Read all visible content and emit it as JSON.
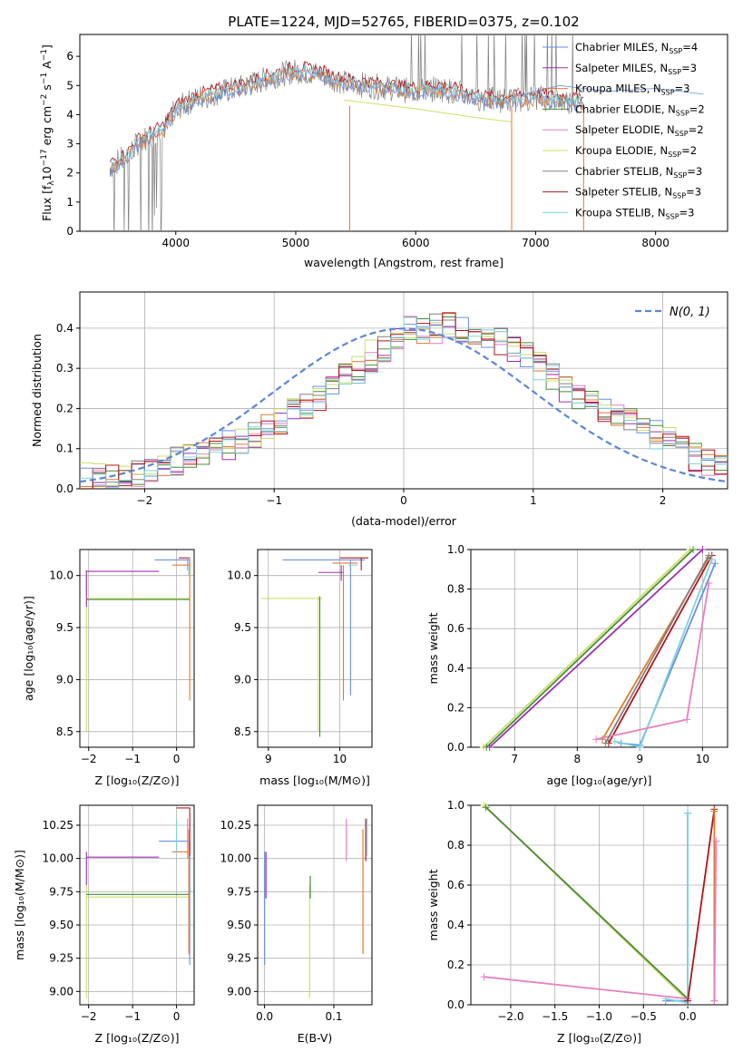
{
  "figure": {
    "title": "PLATE=1224, MJD=52765, FIBERID=0375, z=0.102"
  },
  "colors": {
    "Chabrier MILES": "#6a8fe0",
    "Salpeter MILES": "#9b30b0",
    "Kroupa MILES": "#e07a2e",
    "Chabrier ELODIE": "#4a8a3a",
    "Salpeter ELODIE": "#e77fbf",
    "Kroupa ELODIE": "#c8e06a",
    "Chabrier STELIB": "#808080",
    "Salpeter STELIB": "#b0141e",
    "Kroupa STELIB": "#7fd3dd"
  },
  "chart_data": [
    {
      "id": "spectrum",
      "type": "line",
      "xlabel": "wavelength [Angstrom, rest frame]",
      "ylabel": "Flux [f_λ10^-17 erg cm^-2 s^-1 A^-1]",
      "xlim": [
        3200,
        8600
      ],
      "ylim": [
        0,
        6.75
      ],
      "xticks": [
        4000,
        5000,
        6000,
        7000,
        8000
      ],
      "yticks": [
        0,
        1,
        2,
        3,
        4,
        5,
        6
      ],
      "legend_position": "top-right",
      "legend": [
        {
          "base": "Chabrier MILES, N",
          "sub": "SSP",
          "tail": "=4"
        },
        {
          "base": "Salpeter MILES, N",
          "sub": "SSP",
          "tail": "=3"
        },
        {
          "base": "Kroupa MILES, N",
          "sub": "SSP",
          "tail": "=3"
        },
        {
          "base": "Chabrier ELODIE, N",
          "sub": "SSP",
          "tail": "=2"
        },
        {
          "base": "Salpeter ELODIE, N",
          "sub": "SSP",
          "tail": "=2"
        },
        {
          "base": "Kroupa ELODIE, N",
          "sub": "SSP",
          "tail": "=2"
        },
        {
          "base": "Chabrier STELIB, N",
          "sub": "SSP",
          "tail": "=3"
        },
        {
          "base": "Salpeter STELIB, N",
          "sub": "SSP",
          "tail": "=3"
        },
        {
          "base": "Kroupa STELIB, N",
          "sub": "SSP",
          "tail": "=3"
        }
      ],
      "model_curve_points": [
        [
          3450,
          2.2
        ],
        [
          3600,
          2.6
        ],
        [
          3700,
          3.1
        ],
        [
          3800,
          3.3
        ],
        [
          3900,
          3.5
        ],
        [
          4000,
          4.2
        ],
        [
          4200,
          4.6
        ],
        [
          4400,
          4.8
        ],
        [
          4600,
          5.0
        ],
        [
          4800,
          5.3
        ],
        [
          5000,
          5.5
        ],
        [
          5200,
          5.4
        ],
        [
          5400,
          5.1
        ],
        [
          5600,
          5.0
        ],
        [
          5800,
          4.9
        ],
        [
          6000,
          4.8
        ],
        [
          6200,
          4.9
        ],
        [
          6400,
          4.7
        ],
        [
          6600,
          4.5
        ],
        [
          6800,
          4.5
        ],
        [
          7000,
          4.6
        ],
        [
          7200,
          4.5
        ],
        [
          7400,
          4.4
        ]
      ],
      "elodie_curve_points": [
        [
          5400,
          4.5
        ],
        [
          6000,
          4.2
        ],
        [
          6500,
          3.9
        ],
        [
          6800,
          3.75
        ]
      ],
      "miles_extension_points": [
        [
          6800,
          4.6
        ],
        [
          7200,
          5.0
        ],
        [
          7600,
          4.8
        ],
        [
          8000,
          4.9
        ],
        [
          8400,
          4.7
        ]
      ]
    },
    {
      "id": "residuals",
      "type": "histogram",
      "xlabel": "(data-model)/error",
      "ylabel": "Normed distribution",
      "xlim": [
        -2.5,
        2.5
      ],
      "ylim": [
        0,
        0.49
      ],
      "xticks": [
        -2,
        -1,
        0,
        1,
        2
      ],
      "yticks": [
        0.0,
        0.1,
        0.2,
        0.3,
        0.4
      ],
      "legend": "N(0,1)",
      "legend_position": "top-right",
      "bins": [
        -2.5,
        -2.4,
        -2.3,
        -2.2,
        -2.1,
        -2.0,
        -1.9,
        -1.8,
        -1.7,
        -1.6,
        -1.5,
        -1.4,
        -1.3,
        -1.2,
        -1.1,
        -1.0,
        -0.9,
        -0.8,
        -0.7,
        -0.6,
        -0.5,
        -0.4,
        -0.3,
        -0.2,
        -0.1,
        0.0,
        0.1,
        0.2,
        0.3,
        0.4,
        0.5,
        0.6,
        0.7,
        0.8,
        0.9,
        1.0,
        1.1,
        1.2,
        1.3,
        1.4,
        1.5,
        1.6,
        1.7,
        1.8,
        1.9,
        2.0,
        2.1,
        2.2,
        2.3,
        2.4,
        2.5
      ],
      "base_values": [
        0.02,
        0.02,
        0.03,
        0.03,
        0.04,
        0.05,
        0.06,
        0.07,
        0.08,
        0.09,
        0.1,
        0.11,
        0.12,
        0.13,
        0.15,
        0.17,
        0.19,
        0.21,
        0.23,
        0.26,
        0.28,
        0.3,
        0.33,
        0.35,
        0.37,
        0.4,
        0.39,
        0.4,
        0.41,
        0.4,
        0.39,
        0.38,
        0.37,
        0.35,
        0.33,
        0.3,
        0.28,
        0.25,
        0.23,
        0.21,
        0.2,
        0.18,
        0.17,
        0.15,
        0.14,
        0.12,
        0.1,
        0.08,
        0.07,
        0.06
      ]
    },
    {
      "id": "age-vs-Z",
      "type": "scatter",
      "xlabel": "Z [log10(Z/Z⊙)]",
      "ylabel": "age [log10(age/yr)]",
      "xlim": [
        -2.2,
        0.4
      ],
      "ylim": [
        8.35,
        10.25
      ],
      "xticks": [
        -2,
        -1,
        0
      ],
      "yticks": [
        8.5,
        9.0,
        9.5,
        10.0
      ]
    },
    {
      "id": "age-vs-mass",
      "type": "scatter",
      "xlabel": "mass [log10(M/M⊙)]",
      "xlim": [
        8.85,
        10.45
      ],
      "ylim": [
        8.35,
        10.25
      ],
      "xticks": [
        9,
        10
      ],
      "yticks": [
        8.5,
        9.0,
        9.5,
        10.0
      ]
    },
    {
      "id": "massweight-vs-age",
      "type": "line",
      "xlabel": "age [log10(age/yr)]",
      "ylabel": "mass weight",
      "xlim": [
        6.3,
        10.4
      ],
      "ylim": [
        0,
        1.0
      ],
      "xticks": [
        7,
        8,
        9,
        10
      ],
      "yticks": [
        0.0,
        0.2,
        0.4,
        0.6,
        0.8,
        1.0
      ],
      "series": [
        {
          "name": "Kroupa ELODIE",
          "points": [
            [
              6.5,
              0.0
            ],
            [
              9.8,
              1.0
            ]
          ]
        },
        {
          "name": "Chabrier ELODIE",
          "points": [
            [
              6.55,
              0.0
            ],
            [
              9.85,
              1.0
            ]
          ]
        },
        {
          "name": "Salpeter MILES",
          "points": [
            [
              6.6,
              0.0
            ],
            [
              10.0,
              1.0
            ]
          ]
        },
        {
          "name": "Salpeter STELIB",
          "points": [
            [
              8.5,
              0.02
            ],
            [
              10.15,
              0.97
            ]
          ]
        },
        {
          "name": "Kroupa MILES",
          "points": [
            [
              8.4,
              0.04
            ],
            [
              10.1,
              0.96
            ]
          ]
        },
        {
          "name": "Chabrier MILES",
          "points": [
            [
              8.7,
              0.02
            ],
            [
              9.0,
              0.01
            ],
            [
              10.2,
              0.93
            ]
          ]
        },
        {
          "name": "Kroupa STELIB",
          "points": [
            [
              8.6,
              0.03
            ],
            [
              9.0,
              0.0
            ],
            [
              10.15,
              0.95
            ]
          ]
        },
        {
          "name": "Salpeter ELODIE",
          "points": [
            [
              8.3,
              0.04
            ],
            [
              9.75,
              0.14
            ],
            [
              10.1,
              0.83
            ]
          ]
        },
        {
          "name": "Chabrier STELIB",
          "points": [
            [
              8.45,
              0.02
            ],
            [
              10.1,
              0.97
            ]
          ]
        }
      ]
    },
    {
      "id": "mass-vs-Z",
      "type": "scatter",
      "xlabel": "Z [log10(Z/Z⊙)]",
      "ylabel": "mass [log10(M/M⊙)]",
      "xlim": [
        -2.2,
        0.4
      ],
      "ylim": [
        8.9,
        10.4
      ],
      "xticks": [
        -2,
        -1,
        0
      ],
      "yticks": [
        9.0,
        9.25,
        9.5,
        9.75,
        10.0,
        10.25
      ]
    },
    {
      "id": "mass-vs-EBV",
      "type": "scatter",
      "xlabel": "E(B-V)",
      "xlim": [
        -0.01,
        0.155
      ],
      "ylim": [
        8.9,
        10.4
      ],
      "xticks": [
        0.0,
        0.1
      ],
      "yticks": [
        9.0,
        9.25,
        9.5,
        9.75,
        10.0,
        10.25
      ],
      "bars": [
        {
          "name": "Chabrier MILES",
          "x": 0.0,
          "y": [
            9.2,
            10.05
          ]
        },
        {
          "name": "Salpeter MILES",
          "x": 0.002,
          "y": [
            9.7,
            10.05
          ]
        },
        {
          "name": "Kroupa ELODIE",
          "x": 0.065,
          "y": [
            8.95,
            9.8
          ]
        },
        {
          "name": "Chabrier ELODIE",
          "x": 0.066,
          "y": [
            9.7,
            9.87
          ]
        },
        {
          "name": "Salpeter ELODIE",
          "x": 0.118,
          "y": [
            9.98,
            10.3
          ]
        },
        {
          "name": "Kroupa MILES",
          "x": 0.142,
          "y": [
            9.28,
            10.22
          ]
        },
        {
          "name": "Salpeter STELIB",
          "x": 0.146,
          "y": [
            9.98,
            10.3
          ]
        },
        {
          "name": "Kroupa STELIB",
          "x": 0.148,
          "y": [
            10.02,
            10.3
          ]
        }
      ]
    },
    {
      "id": "massweight-vs-Z",
      "type": "line",
      "xlabel": "Z [log10(Z/Z⊙)]",
      "ylabel": "mass weight",
      "xlim": [
        -2.45,
        0.45
      ],
      "ylim": [
        0,
        1.0
      ],
      "xticks": [
        -2.0,
        -1.5,
        -1.0,
        -0.5,
        0.0
      ],
      "yticks": [
        0.0,
        0.2,
        0.4,
        0.6,
        0.8,
        1.0
      ],
      "series": [
        {
          "name": "Kroupa ELODIE",
          "points": [
            [
              -2.3,
              1.0
            ],
            [
              0.0,
              0.02
            ]
          ]
        },
        {
          "name": "Chabrier ELODIE",
          "points": [
            [
              -2.28,
              0.99
            ],
            [
              0.0,
              0.03
            ]
          ]
        },
        {
          "name": "Salpeter ELODIE",
          "points": [
            [
              -2.3,
              0.14
            ],
            [
              0.0,
              0.03
            ]
          ]
        },
        {
          "name": "Chabrier MILES",
          "points": [
            [
              -0.25,
              0.02
            ],
            [
              0.0,
              0.02
            ],
            [
              0.0,
              0.96
            ]
          ]
        },
        {
          "name": "Kroupa STELIB",
          "points": [
            [
              -0.25,
              0.03
            ],
            [
              0.0,
              0.01
            ],
            [
              0.0,
              0.96
            ]
          ]
        },
        {
          "name": "Salpeter STELIB",
          "points": [
            [
              0.0,
              0.02
            ],
            [
              0.3,
              0.98
            ]
          ]
        },
        {
          "name": "Kroupa MILES",
          "points": [
            [
              0.3,
              0.02
            ],
            [
              0.3,
              0.97
            ]
          ]
        },
        {
          "name": "Salpeter ELODIE",
          "points": [
            [
              0.3,
              0.02
            ],
            [
              0.32,
              0.82
            ]
          ]
        }
      ]
    }
  ]
}
